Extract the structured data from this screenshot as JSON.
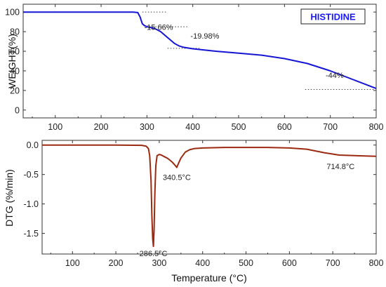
{
  "chart_data": [
    {
      "type": "line",
      "ylabel": "WEIGHT(%)",
      "xlabel": "",
      "xlim": [
        30,
        800
      ],
      "ylim": [
        -8,
        108
      ],
      "x_ticks": [
        100,
        200,
        300,
        400,
        500,
        600,
        700,
        800
      ],
      "y_ticks": [
        0,
        20,
        40,
        60,
        80,
        100
      ],
      "legend": "HISTIDINE",
      "legend_position": "top-right",
      "series": [
        {
          "color": "#1515d6",
          "x": [
            30,
            100,
            200,
            270,
            280,
            285,
            290,
            295,
            300,
            310,
            320,
            330,
            340,
            350,
            360,
            370,
            380,
            400,
            450,
            500,
            550,
            600,
            650,
            700,
            750,
            800
          ],
          "y": [
            100,
            100,
            100,
            100,
            99.5,
            95,
            88,
            86,
            85,
            84,
            82.5,
            80,
            76,
            72,
            68,
            65.5,
            64,
            62.5,
            60,
            58,
            56,
            52.5,
            47.5,
            40,
            31,
            22
          ]
        }
      ],
      "annotations": [
        {
          "text": "-15.66%",
          "x": 285,
          "y": 91
        },
        {
          "text": "-19.98%",
          "x": 395,
          "y": 73
        },
        {
          "text": "-44%",
          "x": 705,
          "y": 27
        }
      ],
      "ref_lines": [
        {
          "x1": 290,
          "x2": 345,
          "y": 100
        },
        {
          "x1": 300,
          "x2": 390,
          "y": 85
        },
        {
          "x1": 345,
          "x2": 415,
          "y": 63
        },
        {
          "x1": 645,
          "x2": 795,
          "y": 21
        }
      ]
    },
    {
      "type": "line",
      "ylabel": "DTG (%/min)",
      "xlabel": "Temperature (°C)",
      "xlim": [
        30,
        800
      ],
      "ylim": [
        -1.85,
        0.08
      ],
      "x_ticks": [
        100,
        200,
        300,
        400,
        500,
        600,
        700,
        800
      ],
      "y_ticks": [
        0.0,
        -0.5,
        -1.0,
        -1.5
      ],
      "y_tick_labels": [
        "0.0",
        "-0.5",
        "-1.0",
        "-1.5"
      ],
      "series": [
        {
          "color": "#9b2a10",
          "x": [
            30,
            100,
            200,
            260,
            270,
            275,
            278,
            281,
            283,
            285,
            286.5,
            288,
            290,
            292,
            295,
            300,
            305,
            310,
            315,
            320,
            325,
            330,
            335,
            340.5,
            345,
            350,
            360,
            370,
            380,
            400,
            450,
            500,
            550,
            600,
            640,
            680,
            714.8,
            750,
            800
          ],
          "y": [
            0,
            0,
            0,
            -0.005,
            -0.02,
            -0.06,
            -0.18,
            -0.6,
            -1.2,
            -1.6,
            -1.72,
            -1.45,
            -0.8,
            -0.35,
            -0.18,
            -0.16,
            -0.17,
            -0.19,
            -0.21,
            -0.23,
            -0.26,
            -0.29,
            -0.33,
            -0.38,
            -0.3,
            -0.22,
            -0.12,
            -0.08,
            -0.06,
            -0.05,
            -0.04,
            -0.04,
            -0.04,
            -0.05,
            -0.07,
            -0.13,
            -0.17,
            -0.18,
            -0.19
          ]
        }
      ],
      "annotations": [
        {
          "text": "286.5°C",
          "x": 286.5,
          "y": -1.72
        },
        {
          "text": "340.5°C",
          "x": 340.5,
          "y": -0.38
        },
        {
          "text": "714.8°C",
          "x": 714.8,
          "y": -0.17
        }
      ]
    }
  ]
}
